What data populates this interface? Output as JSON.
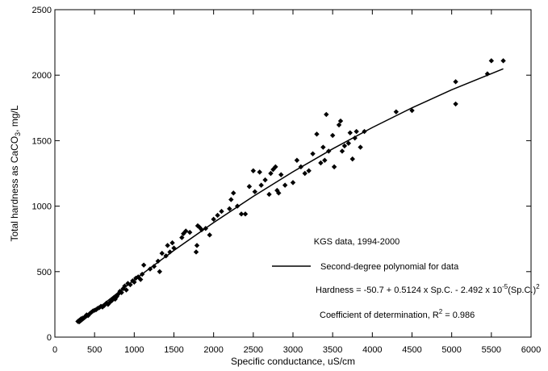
{
  "chart_data": {
    "type": "scatter",
    "x_label": "Specific conductance, uS/cm",
    "y_label": {
      "text": "Total hardness as CaCO",
      "sub": "3",
      "rest": ", mg/L"
    },
    "xlim": [
      0,
      6000
    ],
    "xticks": [
      0,
      500,
      1000,
      1500,
      2000,
      2500,
      3000,
      3500,
      4000,
      4500,
      5000,
      5500,
      6000
    ],
    "ylim": [
      0,
      2500
    ],
    "yticks": [
      0,
      500,
      1000,
      1500,
      2000,
      2500
    ],
    "points": {
      "color": "#000000",
      "x": [
        290,
        310,
        330,
        350,
        370,
        390,
        400,
        420,
        440,
        460,
        480,
        500,
        520,
        540,
        560,
        580,
        600,
        620,
        650,
        670,
        700,
        720,
        740,
        760,
        780,
        800,
        820,
        840,
        860,
        880,
        900,
        920,
        950,
        980,
        1000,
        1020,
        1050,
        1080,
        1100,
        1120,
        1200,
        1250,
        1300,
        1320,
        1350,
        1400,
        1420,
        1450,
        1480,
        1500,
        1600,
        1620,
        1650,
        1700,
        1780,
        1790,
        1800,
        1820,
        1850,
        1900,
        1950,
        2000,
        2050,
        2100,
        2200,
        2220,
        2250,
        2300,
        2350,
        2400,
        2450,
        2500,
        2520,
        2580,
        2600,
        2650,
        2700,
        2720,
        2750,
        2780,
        2800,
        2820,
        2850,
        2900,
        3000,
        3050,
        3100,
        3150,
        3200,
        3250,
        3300,
        3350,
        3380,
        3400,
        3420,
        3450,
        3500,
        3520,
        3580,
        3600,
        3620,
        3650,
        3700,
        3720,
        3750,
        3780,
        3800,
        3850,
        3900,
        4300,
        4500,
        5050,
        5050,
        5450,
        5500,
        5650
      ],
      "y": [
        120,
        130,
        140,
        145,
        150,
        160,
        170,
        165,
        180,
        190,
        200,
        205,
        210,
        220,
        225,
        235,
        230,
        240,
        260,
        250,
        270,
        280,
        300,
        290,
        310,
        330,
        350,
        340,
        370,
        390,
        360,
        410,
        400,
        430,
        420,
        450,
        460,
        440,
        480,
        550,
        520,
        540,
        580,
        500,
        640,
        620,
        700,
        650,
        720,
        680,
        760,
        790,
        810,
        800,
        650,
        700,
        850,
        840,
        820,
        830,
        780,
        900,
        930,
        960,
        980,
        1050,
        1100,
        1000,
        940,
        940,
        1150,
        1270,
        1110,
        1260,
        1160,
        1200,
        1090,
        1250,
        1280,
        1300,
        1120,
        1100,
        1240,
        1160,
        1180,
        1350,
        1300,
        1250,
        1270,
        1400,
        1550,
        1330,
        1450,
        1350,
        1700,
        1420,
        1540,
        1300,
        1620,
        1650,
        1420,
        1460,
        1480,
        1560,
        1360,
        1520,
        1570,
        1450,
        1570,
        1720,
        1730,
        1950,
        1780,
        2010,
        2110,
        2110
      ]
    },
    "fit": {
      "name": "Second-degree polynomial for data",
      "color": "#000000",
      "x": [
        300,
        500,
        1000,
        1500,
        2000,
        2500,
        3000,
        3500,
        4000,
        4500,
        5000,
        5650
      ],
      "y": [
        100.8,
        199.3,
        436.8,
        661.8,
        874.4,
        1074.6,
        1262.2,
        1437.4,
        1600.2,
        1750.5,
        1888.3,
        2048.9
      ]
    },
    "annotations": {
      "source": "KGS data, 1994-2000",
      "equation": {
        "text": "Hardness = -50.7 + 0.5124 x Sp.C. - 2.492 x 10",
        "sup1": "-5",
        "mid": "(Sp.C.)",
        "sup2": "2"
      },
      "r2": {
        "text": "Coefficient of determination, R",
        "sup": "2",
        "rest": " = 0.986"
      }
    }
  }
}
